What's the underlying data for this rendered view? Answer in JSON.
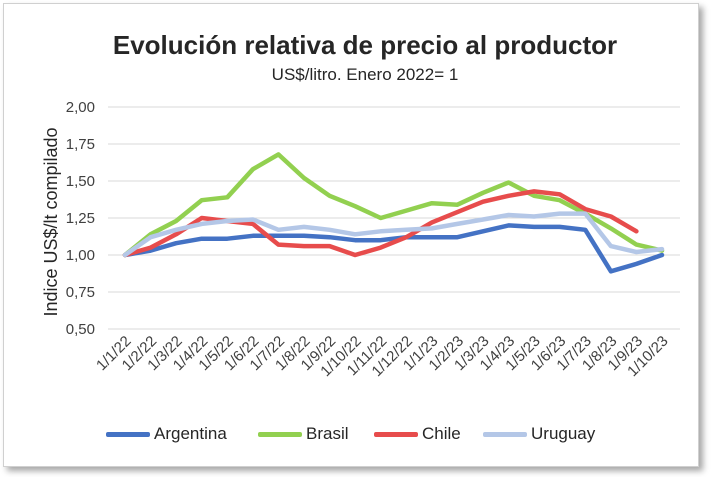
{
  "chart_data": {
    "type": "line",
    "title": "Evolución relativa de precio al productor",
    "subtitle": "US$/litro. Enero 2022= 1",
    "xlabel": "",
    "ylabel": "Indice US$/lt compilado",
    "ylim": [
      0.5,
      2.0
    ],
    "yticks": [
      "0,50",
      "0,75",
      "1,00",
      "1,25",
      "1,50",
      "1,75",
      "2,00"
    ],
    "ytick_values": [
      0.5,
      0.75,
      1.0,
      1.25,
      1.5,
      1.75,
      2.0
    ],
    "grid": true,
    "legend_position": "bottom",
    "categories": [
      "1/1/22",
      "1/2/22",
      "1/3/22",
      "1/4/22",
      "1/5/22",
      "1/6/22",
      "1/7/22",
      "1/8/22",
      "1/9/22",
      "1/10/22",
      "1/11/22",
      "1/12/22",
      "1/1/23",
      "1/2/23",
      "1/3/23",
      "1/4/23",
      "1/5/23",
      "1/6/23",
      "1/7/23",
      "1/8/23",
      "1/9/23",
      "1/10/23"
    ],
    "series": [
      {
        "name": "Argentina",
        "color": "#4472c4",
        "values": [
          1.0,
          1.03,
          1.08,
          1.11,
          1.11,
          1.13,
          1.13,
          1.13,
          1.12,
          1.1,
          1.1,
          1.12,
          1.12,
          1.12,
          1.16,
          1.2,
          1.19,
          1.19,
          1.17,
          0.89,
          0.94,
          1.0
        ]
      },
      {
        "name": "Brasil",
        "color": "#92d050",
        "values": [
          1.0,
          1.14,
          1.23,
          1.37,
          1.39,
          1.58,
          1.68,
          1.52,
          1.4,
          1.33,
          1.25,
          1.3,
          1.35,
          1.34,
          1.42,
          1.49,
          1.4,
          1.37,
          1.28,
          1.18,
          1.07,
          1.03
        ]
      },
      {
        "name": "Chile",
        "color": "#e74c4c",
        "values": [
          1.0,
          1.05,
          1.14,
          1.25,
          1.23,
          1.21,
          1.07,
          1.06,
          1.06,
          1.0,
          1.05,
          1.12,
          1.22,
          1.29,
          1.36,
          1.4,
          1.43,
          1.41,
          1.31,
          1.26,
          1.16,
          null
        ]
      },
      {
        "name": "Uruguay",
        "color": "#b4c7e7",
        "values": [
          1.0,
          1.12,
          1.17,
          1.21,
          1.23,
          1.24,
          1.17,
          1.19,
          1.17,
          1.14,
          1.16,
          1.17,
          1.18,
          1.21,
          1.24,
          1.27,
          1.26,
          1.28,
          1.28,
          1.06,
          1.02,
          1.04
        ]
      }
    ]
  }
}
